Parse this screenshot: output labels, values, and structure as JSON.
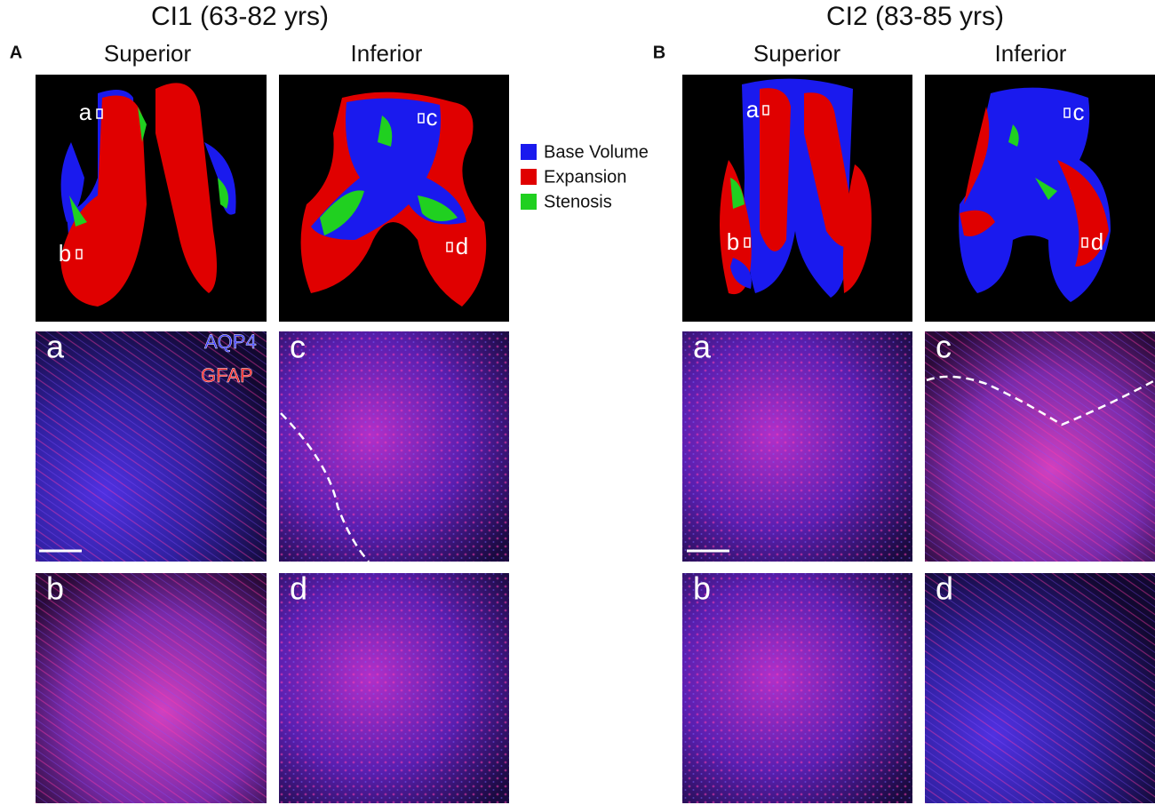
{
  "header": {
    "left_title": "CI1 (63-82 yrs)",
    "right_title": "CI2 (83-85 yrs)"
  },
  "panels": [
    {
      "label": "A",
      "columns": [
        "Superior",
        "Inferior"
      ],
      "models": [
        {
          "markers": [
            "a",
            "b"
          ]
        },
        {
          "markers": [
            "c",
            "d"
          ]
        }
      ],
      "micrographs": [
        "a",
        "c",
        "b",
        "d"
      ],
      "stains": [
        "AQP4",
        "GFAP"
      ]
    },
    {
      "label": "B",
      "columns": [
        "Superior",
        "Inferior"
      ],
      "models": [
        {
          "markers": [
            "a",
            "b"
          ]
        },
        {
          "markers": [
            "c",
            "d"
          ]
        }
      ],
      "micrographs": [
        "a",
        "c",
        "b",
        "d"
      ]
    }
  ],
  "legend": [
    "Base Volume",
    "Expansion",
    "Stenosis"
  ]
}
